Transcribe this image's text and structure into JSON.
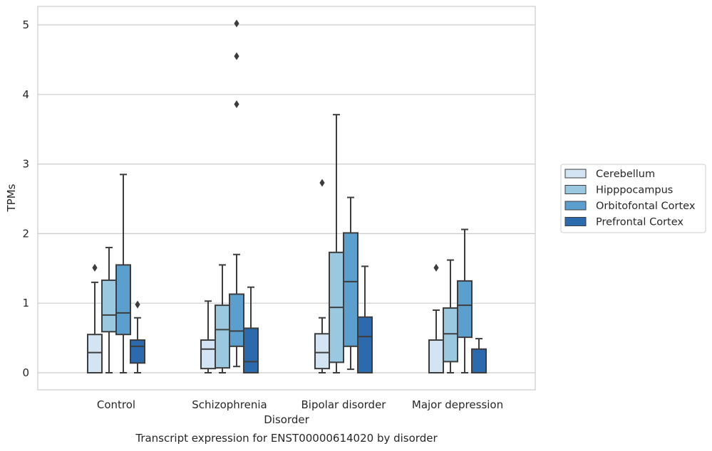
{
  "chart_data": {
    "type": "box",
    "xlabel": "Disorder",
    "ylabel": "TPMs",
    "caption": "Transcript expression for ENST00000614020 by disorder",
    "ylim": [
      -0.25,
      5.27
    ],
    "yticks": [
      0,
      1,
      2,
      3,
      4,
      5
    ],
    "grid": true,
    "legend_position": "right",
    "categories": [
      "Control",
      "Schizophrenia",
      "Bipolar disorder",
      "Major depression"
    ],
    "series": [
      {
        "name": "Cerebellum",
        "color": "#d3e4f3",
        "boxes": [
          {
            "whisker_low": 0,
            "q1": 0,
            "median": 0.29,
            "q3": 0.55,
            "whisker_high": 1.3,
            "outliers": [
              1.51
            ]
          },
          {
            "whisker_low": 0,
            "q1": 0.06,
            "median": 0.34,
            "q3": 0.47,
            "whisker_high": 1.03,
            "outliers": []
          },
          {
            "whisker_low": 0,
            "q1": 0.06,
            "median": 0.29,
            "q3": 0.56,
            "whisker_high": 0.79,
            "outliers": [
              2.73
            ]
          },
          {
            "whisker_low": 0,
            "q1": 0,
            "median": 0,
            "q3": 0.47,
            "whisker_high": 0.9,
            "outliers": [
              1.51
            ]
          }
        ]
      },
      {
        "name": "Hipppocampus",
        "color": "#9ac8e0",
        "boxes": [
          {
            "whisker_low": 0,
            "q1": 0.59,
            "median": 0.83,
            "q3": 1.33,
            "whisker_high": 1.8,
            "outliers": []
          },
          {
            "whisker_low": 0,
            "q1": 0.07,
            "median": 0.62,
            "q3": 0.97,
            "whisker_high": 1.55,
            "outliers": []
          },
          {
            "whisker_low": 0,
            "q1": 0.15,
            "median": 0.94,
            "q3": 1.73,
            "whisker_high": 3.71,
            "outliers": []
          },
          {
            "whisker_low": 0,
            "q1": 0.16,
            "median": 0.56,
            "q3": 0.93,
            "whisker_high": 1.62,
            "outliers": []
          }
        ]
      },
      {
        "name": "Orbitofontal Cortex",
        "color": "#5a9fcd",
        "boxes": [
          {
            "whisker_low": 0,
            "q1": 0.55,
            "median": 0.86,
            "q3": 1.55,
            "whisker_high": 2.85,
            "outliers": []
          },
          {
            "whisker_low": 0.09,
            "q1": 0.38,
            "median": 0.6,
            "q3": 1.13,
            "whisker_high": 1.7,
            "outliers": [
              3.86,
              4.55,
              5.02
            ]
          },
          {
            "whisker_low": 0.05,
            "q1": 0.38,
            "median": 1.31,
            "q3": 2.01,
            "whisker_high": 2.52,
            "outliers": []
          },
          {
            "whisker_low": 0,
            "q1": 0.51,
            "median": 0.97,
            "q3": 1.32,
            "whisker_high": 2.06,
            "outliers": []
          }
        ]
      },
      {
        "name": "Prefrontal Cortex",
        "color": "#2b6aad",
        "boxes": [
          {
            "whisker_low": 0,
            "q1": 0.14,
            "median": 0.38,
            "q3": 0.47,
            "whisker_high": 0.79,
            "outliers": [
              0.98
            ]
          },
          {
            "whisker_low": 0,
            "q1": 0,
            "median": 0.16,
            "q3": 0.64,
            "whisker_high": 1.23,
            "outliers": []
          },
          {
            "whisker_low": 0,
            "q1": 0,
            "median": 0.52,
            "q3": 0.8,
            "whisker_high": 1.53,
            "outliers": []
          },
          {
            "whisker_low": 0,
            "q1": 0,
            "median": 0,
            "q3": 0.34,
            "whisker_high": 0.49,
            "outliers": []
          }
        ]
      }
    ]
  }
}
